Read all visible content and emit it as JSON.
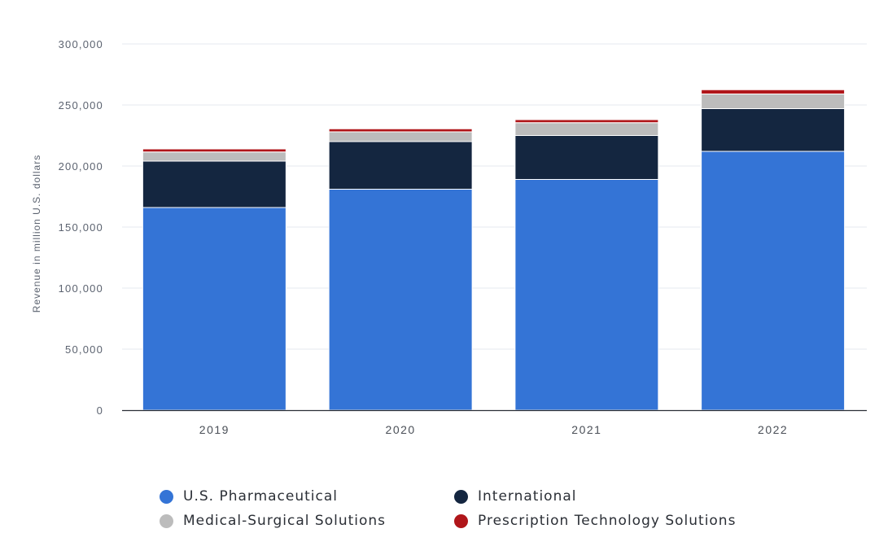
{
  "chart_data": {
    "type": "bar",
    "stacked": true,
    "ylabel": "Revenue in million U.S. dollars",
    "ylim": [
      0,
      300000
    ],
    "yticks": [
      0,
      50000,
      100000,
      150000,
      200000,
      250000,
      300000
    ],
    "ytick_labels": [
      "0",
      "50,000",
      "100,000",
      "150,000",
      "200,000",
      "250,000",
      "300,000"
    ],
    "categories": [
      "2019",
      "2020",
      "2021",
      "2022"
    ],
    "series": [
      {
        "name": "U.S. Pharmaceutical",
        "color": "#3474d6",
        "values": [
          166000,
          181000,
          189000,
          212000
        ]
      },
      {
        "name": "International",
        "color": "#142640",
        "values": [
          38000,
          39000,
          36000,
          35000
        ]
      },
      {
        "name": "Medical-Surgical Solutions",
        "color": "#bcbcbc",
        "values": [
          7500,
          8000,
          10500,
          12000
        ]
      },
      {
        "name": "Prescription Technology Solutions",
        "color": "#b0161a",
        "values": [
          2500,
          2500,
          2500,
          3500
        ]
      }
    ],
    "legend": {
      "position": "bottom"
    },
    "grid": true
  }
}
